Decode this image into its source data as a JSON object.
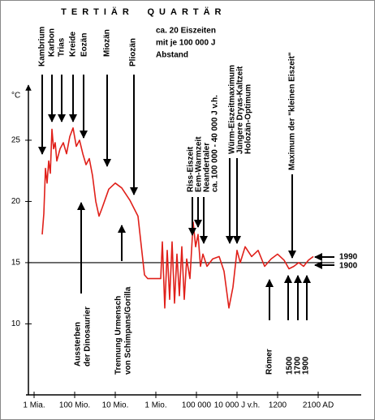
{
  "chart_data": {
    "type": "line",
    "y_label": "°C",
    "color": "#e0201a",
    "x": [
      0.2,
      0.24,
      0.28,
      0.32,
      0.36,
      0.4,
      0.44,
      0.48,
      0.52,
      0.56,
      0.64,
      0.72,
      0.8,
      0.88,
      0.96,
      1.04,
      1.12,
      1.2,
      1.28,
      1.36,
      1.44,
      1.52,
      1.6,
      1.68,
      1.84,
      2,
      2.16,
      2.36,
      2.56,
      2.72,
      2.8,
      3.12,
      3.16,
      3.22,
      3.28,
      3.34,
      3.4,
      3.46,
      3.52,
      3.58,
      3.64,
      3.7,
      3.76,
      3.84,
      3.92,
      3.98,
      4.04,
      4.1,
      4.16,
      4.26,
      4.4,
      4.56,
      4.68,
      4.8,
      4.9,
      5,
      5.08,
      5.2,
      5.36,
      5.52,
      5.68,
      5.84,
      6,
      6.16,
      6.28,
      6.4,
      6.52,
      6.64,
      6.76,
      6.88
    ],
    "values": [
      17.3,
      19,
      22.7,
      21.5,
      23.3,
      22.3,
      25.9,
      24.3,
      24.8,
      23.3,
      24.3,
      24.8,
      23.9,
      25.3,
      26,
      24.5,
      25,
      23.9,
      23,
      23.5,
      22.1,
      20,
      18.8,
      19.5,
      21,
      21.5,
      21.1,
      20.1,
      18.8,
      14,
      13.7,
      13.7,
      16.7,
      11.3,
      16,
      12,
      16.7,
      11.7,
      15.7,
      12.3,
      16.3,
      12,
      15.3,
      13.7,
      18.3,
      16.3,
      17.3,
      14.7,
      15.7,
      14.7,
      15.3,
      15.5,
      14.3,
      11.3,
      13,
      16,
      15,
      16.3,
      15.5,
      16,
      14.7,
      15.3,
      15.7,
      15.2,
      14.5,
      14.7,
      15,
      14.7,
      15.2,
      15.5
    ],
    "xlim": [
      -0.2,
      8.06
    ],
    "xticks": [
      {
        "value": 0,
        "label": "1 Mia."
      },
      {
        "value": 1,
        "label": "100 Mio."
      },
      {
        "value": 2,
        "label": "10 Mio."
      },
      {
        "value": 3,
        "label": "1 Mio."
      },
      {
        "value": 4,
        "label": "100 000"
      },
      {
        "value": 5,
        "label": "10 000 J v.h."
      },
      {
        "value": 6,
        "label": "1200"
      },
      {
        "value": 7,
        "label": "2100 AD"
      }
    ],
    "ylim": [
      4.2,
      29.5
    ],
    "yticks": [
      10,
      15,
      20,
      25
    ],
    "hline": 15,
    "annotations": [
      "TERTIÄR",
      "QUARTÄR",
      "ca. 20 Eiszeiten",
      "mit je 100 000 J",
      "Abstand",
      "Kambrium",
      "Karbon",
      "Trias",
      "Kreide",
      "Eozän",
      "Miozän",
      "Pliozän",
      "Riss-Eiszeit",
      "Eem-Warmzeit",
      "Neandertaler",
      "ca. 100 000 - 40 000 J v.h.",
      "Würm-Eiszeitmaximum",
      "Jüngere Dryas-Kaltzeit",
      "Holozän-Optimum",
      "Maximum der \"kleinen Eiszeit\"",
      "Aussterben",
      "der Dinosaurier",
      "Trennung Urmensch",
      "von Schimpans/Gorilla",
      "Römer",
      "1500",
      "1700",
      "1900",
      "1990",
      "1900"
    ]
  }
}
